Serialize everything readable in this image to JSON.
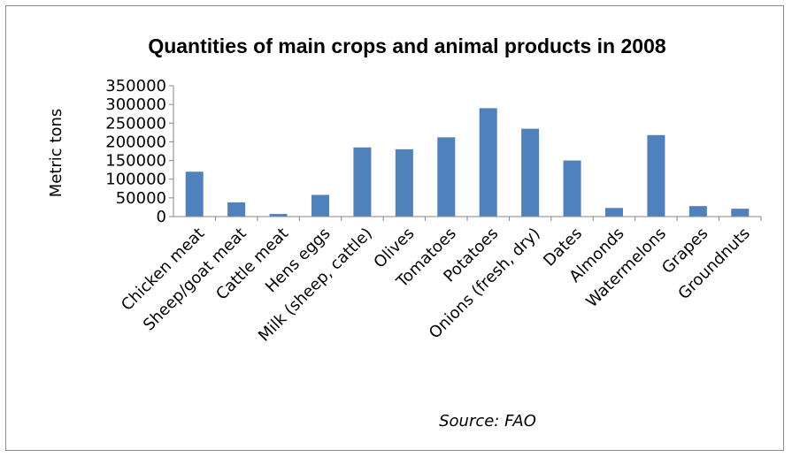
{
  "chart_data": {
    "type": "bar",
    "title": "Quantities of main crops and animal products in 2008",
    "xlabel": "",
    "ylabel": "Metric tons",
    "ylim": [
      0,
      350000
    ],
    "yticks": [
      0,
      50000,
      100000,
      150000,
      200000,
      250000,
      300000,
      350000
    ],
    "grid": false,
    "bar_color": "#4f81bd",
    "categories": [
      "Chicken meat",
      "Sheep/goat meat",
      "Cattle meat",
      "Hens eggs",
      "Milk (sheep, cattle)",
      "Olives",
      "Tomatoes",
      "Potatoes",
      "Onions (fresh, dry)",
      "Dates",
      "Almonds",
      "Watermelons",
      "Grapes",
      "Groundnuts"
    ],
    "values": [
      120000,
      38000,
      7000,
      58000,
      185000,
      180000,
      212000,
      290000,
      235000,
      150000,
      23000,
      218000,
      28000,
      21000
    ],
    "annotation": "Source: FAO"
  }
}
